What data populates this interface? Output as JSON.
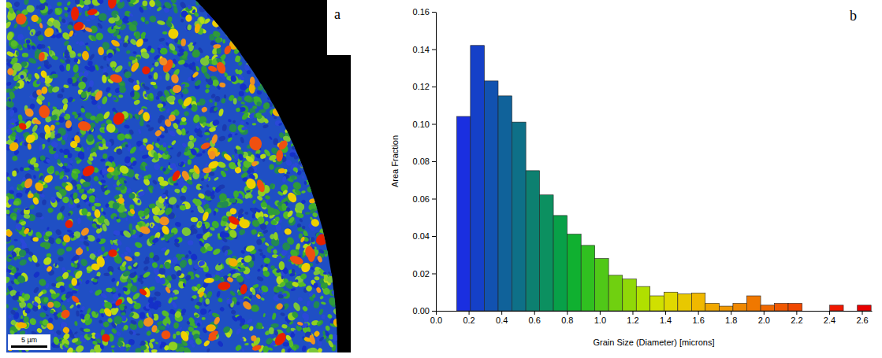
{
  "image": {
    "label": "a",
    "scale_bar": "5 µm"
  },
  "chart_data": {
    "type": "histogram",
    "label": "b",
    "x_label": "Grain Size (Diameter) [microns]",
    "y_label": "Area Fraction",
    "bins": [
      0.127,
      0.211,
      0.296,
      0.38,
      0.464,
      0.549,
      0.633,
      0.717,
      0.801,
      0.886,
      0.97,
      1.054,
      1.139,
      1.223,
      1.307,
      1.392,
      1.476,
      1.56,
      1.644,
      1.729,
      1.813,
      1.897,
      1.982,
      2.066,
      2.15,
      2.235,
      2.319,
      2.403,
      2.487,
      2.572,
      2.656
    ],
    "values": [
      0.104,
      0.142,
      0.123,
      0.115,
      0.101,
      0.075,
      0.062,
      0.051,
      0.041,
      0.035,
      0.028,
      0.019,
      0.017,
      0.013,
      0.008,
      0.01,
      0.009,
      0.0095,
      0.004,
      0.0025,
      0.004,
      0.008,
      0.003,
      0.004,
      0.004,
      0,
      0,
      0.003,
      0,
      0.003
    ],
    "colors": [
      "#1a2fe0",
      "#1540c8",
      "#1252b0",
      "#10629a",
      "#0e7088",
      "#0d8070",
      "#0c9060",
      "#08a048",
      "#10b030",
      "#30c020",
      "#50c818",
      "#70d010",
      "#90d808",
      "#b0e000",
      "#d0e000",
      "#e0d800",
      "#e8c800",
      "#f0b800",
      "#f0a800",
      "#f09800",
      "#f08800",
      "#f07800",
      "#f06800",
      "#f05800",
      "#f04800",
      "#f03800",
      "#f02800",
      "#f01800",
      "#f01000",
      "#e80000"
    ],
    "xlim": [
      0,
      2.66
    ],
    "xticks": [
      {
        "value": 0,
        "label": "0.0"
      },
      0.2,
      0.4,
      0.6,
      0.8,
      {
        "value": 1,
        "label": "1.0"
      },
      1.2,
      1.4,
      1.6,
      1.8,
      {
        "value": 2,
        "label": "2.0"
      },
      2.2,
      2.4,
      2.6
    ],
    "ylim": [
      0,
      0.16
    ],
    "yticks": [
      {
        "value": 0,
        "label": "0.00"
      },
      0.02,
      0.04,
      0.06,
      0.08,
      {
        "value": 0.1,
        "label": "0.10"
      },
      0.12,
      0.14,
      0.16
    ],
    "grid": false
  }
}
